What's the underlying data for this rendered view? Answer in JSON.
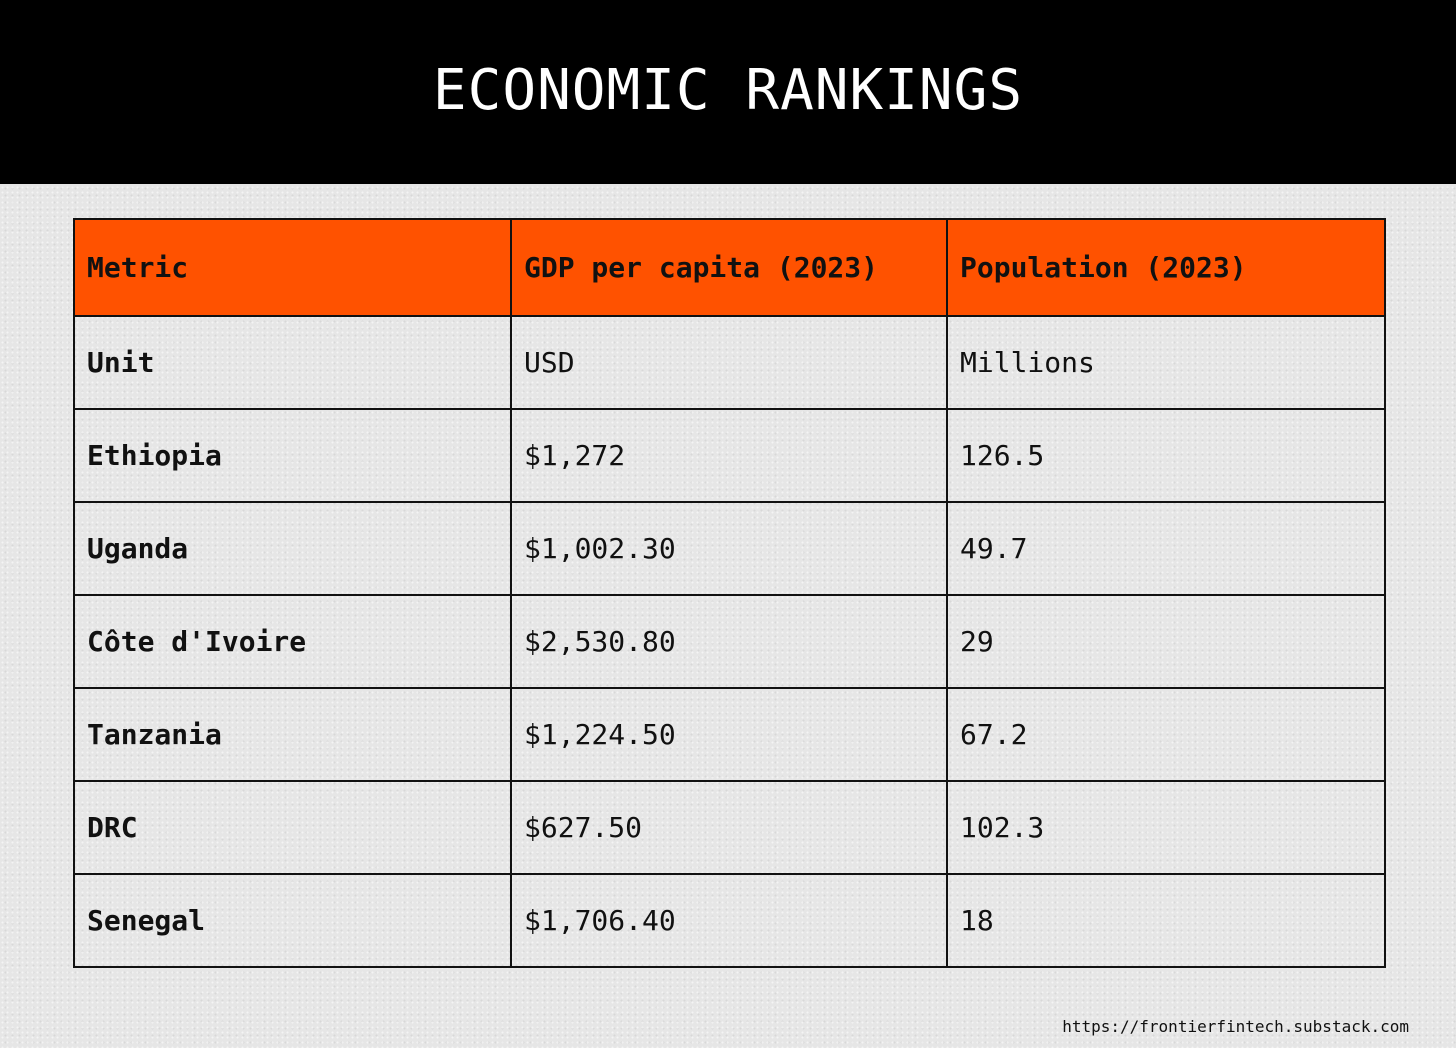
{
  "header": {
    "title": "ECONOMIC RANKINGS"
  },
  "colors": {
    "header_background": "#000000",
    "table_header_background": "#ff5200",
    "page_background": "#e6e6e6"
  },
  "table": {
    "columns": [
      "Metric",
      "GDP per capita (2023)",
      "Population (2023)"
    ],
    "rows": [
      [
        "Unit",
        "USD",
        "Millions"
      ],
      [
        "Ethiopia",
        "$1,272",
        "126.5"
      ],
      [
        "Uganda",
        "$1,002.30",
        "49.7"
      ],
      [
        "Côte d'Ivoire",
        "$2,530.80",
        "29"
      ],
      [
        "Tanzania",
        "$1,224.50",
        "67.2"
      ],
      [
        "DRC",
        "$627.50",
        "102.3"
      ],
      [
        "Senegal",
        "$1,706.40",
        "18"
      ]
    ]
  },
  "footer": {
    "url": "https://frontierfintech.substack.com"
  }
}
